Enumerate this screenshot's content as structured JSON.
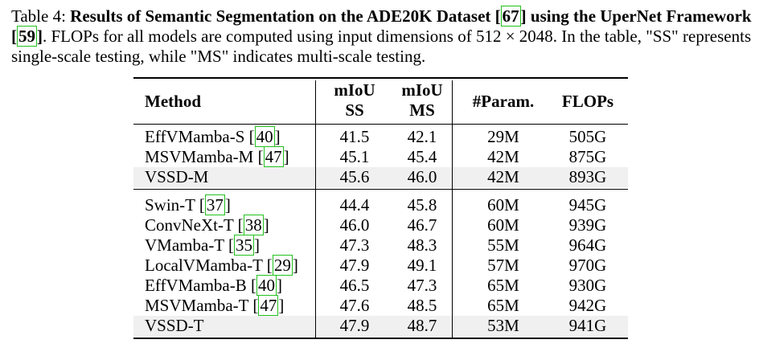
{
  "caption": {
    "label": "Table 4:",
    "bold_part1": "Results of Semantic Segmentation on the ADE20K Dataset",
    "cite1": "67",
    "bold_part2": "using the UperNet Framework",
    "cite2": "59",
    "rest": ". FLOPs for all models are computed using input dimensions of 512 × 2048. In the table, \"SS\" represents single-scale testing, while \"MS\" indicates multi-scale testing."
  },
  "table": {
    "headers": {
      "method": "Method",
      "miou_ss_1": "mIoU",
      "miou_ss_2": "SS",
      "miou_ms_1": "mIoU",
      "miou_ms_2": "MS",
      "params": "#Param.",
      "flops": "FLOPs"
    },
    "groups": [
      {
        "rows": [
          {
            "name": "EffVMamba-S",
            "cite": "40",
            "ss": "41.5",
            "ms": "42.1",
            "params": "29M",
            "flops": "505G",
            "highlight": false
          },
          {
            "name": "MSVMamba-M",
            "cite": "47",
            "ss": "45.1",
            "ms": "45.4",
            "params": "42M",
            "flops": "875G",
            "highlight": false
          },
          {
            "name": "VSSD-M",
            "cite": "",
            "ss": "45.6",
            "ms": "46.0",
            "params": "42M",
            "flops": "893G",
            "highlight": true
          }
        ]
      },
      {
        "rows": [
          {
            "name": "Swin-T",
            "cite": "37",
            "ss": "44.4",
            "ms": "45.8",
            "params": "60M",
            "flops": "945G",
            "highlight": false
          },
          {
            "name": "ConvNeXt-T",
            "cite": "38",
            "ss": "46.0",
            "ms": "46.7",
            "params": "60M",
            "flops": "939G",
            "highlight": false
          },
          {
            "name": "VMamba-T",
            "cite": "35",
            "ss": "47.3",
            "ms": "48.3",
            "params": "55M",
            "flops": "964G",
            "highlight": false
          },
          {
            "name": "LocalVMamba-T",
            "cite": "29",
            "ss": "47.9",
            "ms": "49.1",
            "params": "57M",
            "flops": "970G",
            "highlight": false
          },
          {
            "name": "EffVMamba-B",
            "cite": "40",
            "ss": "46.5",
            "ms": "47.3",
            "params": "65M",
            "flops": "930G",
            "highlight": false
          },
          {
            "name": "MSVMamba-T",
            "cite": "47",
            "ss": "47.6",
            "ms": "48.5",
            "params": "65M",
            "flops": "942G",
            "highlight": false
          },
          {
            "name": "VSSD-T",
            "cite": "",
            "ss": "47.9",
            "ms": "48.7",
            "params": "53M",
            "flops": "941G",
            "highlight": true
          }
        ]
      }
    ]
  }
}
